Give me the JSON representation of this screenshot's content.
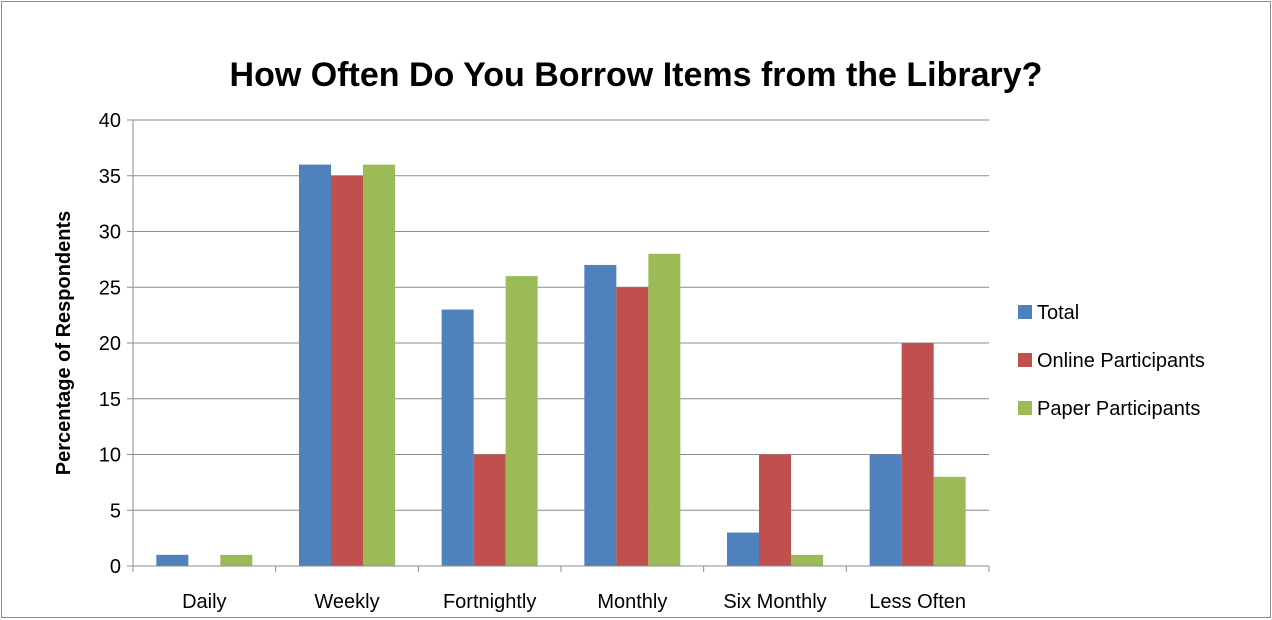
{
  "chart_data": {
    "type": "bar",
    "title": "How Often Do You Borrow Items from the Library?",
    "xlabel": "",
    "ylabel": "Percentage of Respondents",
    "categories": [
      "Daily",
      "Weekly",
      "Fortnightly",
      "Monthly",
      "Six Monthly",
      "Less Often"
    ],
    "series": [
      {
        "name": "Total",
        "color": "#4f81bd",
        "values": [
          1,
          36,
          23,
          27,
          3,
          10
        ]
      },
      {
        "name": "Online Participants",
        "color": "#c0504d",
        "values": [
          0,
          35,
          10,
          25,
          10,
          20
        ]
      },
      {
        "name": "Paper Participants",
        "color": "#9bbb59",
        "values": [
          1,
          36,
          26,
          28,
          1,
          8
        ]
      }
    ],
    "ylim": [
      0,
      40
    ],
    "yticks": [
      0,
      5,
      10,
      15,
      20,
      25,
      30,
      35,
      40
    ],
    "grid": true,
    "legend_position": "right"
  }
}
